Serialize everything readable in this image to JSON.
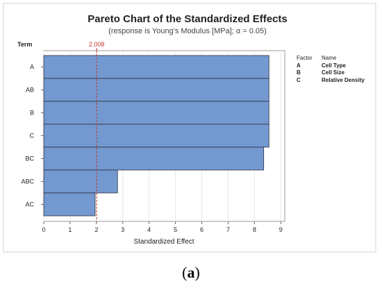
{
  "chart_data": {
    "type": "bar",
    "orientation": "horizontal",
    "title": "Pareto Chart of the Standardized Effects",
    "subtitle": "(response is Young's Modulus [MPa]; α = 0.05)",
    "ylabel": "Term",
    "xlabel": "Standardized Effect",
    "categories": [
      "A",
      "AB",
      "B",
      "C",
      "BC",
      "ABC",
      "AC"
    ],
    "values": [
      8.55,
      8.55,
      8.55,
      8.55,
      8.35,
      2.8,
      1.95
    ],
    "xlim": [
      0,
      9.15
    ],
    "xticks": [
      "0",
      "1",
      "2",
      "3",
      "4",
      "5",
      "6",
      "7",
      "8",
      "9"
    ],
    "reference_line": {
      "value": 2.008,
      "label": "2.008",
      "color": "#c0392b"
    },
    "grid": true,
    "bar_color": "#7399d0",
    "bar_edge_color": "#2c2c3c",
    "legend": {
      "placement": "right",
      "header_factor": "Factor",
      "header_name": "Name",
      "rows": [
        {
          "factor": "A",
          "name": "Cell Type"
        },
        {
          "factor": "B",
          "name": "Cell Size"
        },
        {
          "factor": "C",
          "name": "Relative Density"
        }
      ]
    }
  },
  "caption": {
    "open": "(",
    "label": "a",
    "close": ")"
  }
}
